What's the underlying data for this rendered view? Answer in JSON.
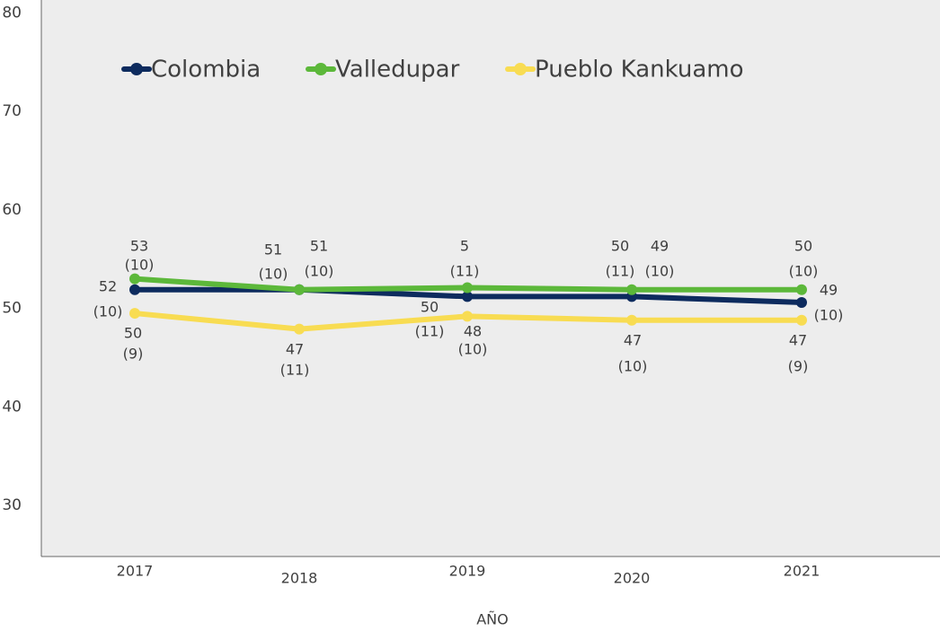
{
  "chart_data": {
    "type": "line",
    "x_label": "AÑO",
    "categories": [
      "2017",
      "2018",
      "2019",
      "2020",
      "2021"
    ],
    "series": [
      {
        "name": "Colombia",
        "color": "#0d2b5e",
        "values": [
          51.9,
          51.9,
          51.2,
          51.2,
          50.6
        ]
      },
      {
        "name": "Valledupar",
        "color": "#5cb83a",
        "values": [
          53,
          51.9,
          52.1,
          51.9,
          51.9
        ]
      },
      {
        "name": "Pueblo Kankuamo",
        "color": "#f8dc52",
        "values": [
          49.5,
          47.9,
          49.2,
          48.8,
          48.8
        ]
      }
    ],
    "ylim": [
      25,
      81.3
    ],
    "yticks": [
      30,
      40,
      50,
      60,
      70,
      80
    ],
    "annotations": [
      [
        "53",
        "(10)"
      ],
      [
        "52",
        "(10)"
      ],
      [
        "50",
        "(9)"
      ],
      [
        "51",
        "(10)"
      ],
      [
        "51",
        "(10)"
      ],
      [
        "47",
        "(11)"
      ],
      [
        "5",
        "(11)"
      ],
      [
        "50",
        "(11)"
      ],
      [
        "48",
        "(10)"
      ],
      [
        "50",
        "(11)"
      ],
      [
        "49",
        "(10)"
      ],
      [
        "47",
        "(10)"
      ],
      [
        "50",
        "(10)"
      ],
      [
        "49",
        "(10)"
      ],
      [
        "47",
        "(9)"
      ]
    ],
    "legend": "top-left"
  }
}
